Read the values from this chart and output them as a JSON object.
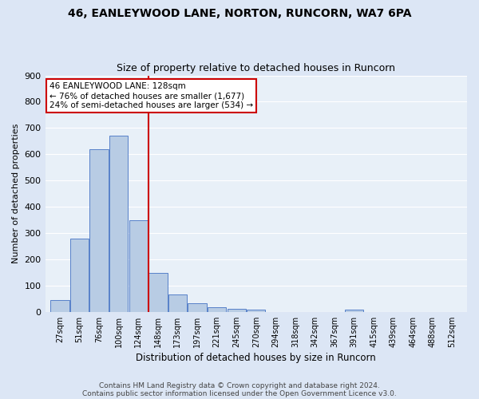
{
  "title1": "46, EANLEYWOOD LANE, NORTON, RUNCORN, WA7 6PA",
  "title2": "Size of property relative to detached houses in Runcorn",
  "xlabel": "Distribution of detached houses by size in Runcorn",
  "ylabel": "Number of detached properties",
  "bin_labels": [
    "27sqm",
    "51sqm",
    "76sqm",
    "100sqm",
    "124sqm",
    "148sqm",
    "173sqm",
    "197sqm",
    "221sqm",
    "245sqm",
    "270sqm",
    "294sqm",
    "318sqm",
    "342sqm",
    "367sqm",
    "391sqm",
    "415sqm",
    "439sqm",
    "464sqm",
    "488sqm",
    "512sqm"
  ],
  "bar_values": [
    45,
    280,
    620,
    670,
    348,
    148,
    65,
    32,
    17,
    12,
    10,
    0,
    0,
    0,
    0,
    8,
    0,
    0,
    0,
    0,
    0
  ],
  "bar_color": "#b8cce4",
  "bar_edge_color": "#4472c4",
  "vline_color": "#cc0000",
  "annotation_title": "46 EANLEYWOOD LANE: 128sqm",
  "annotation_line1": "← 76% of detached houses are smaller (1,677)",
  "annotation_line2": "24% of semi-detached houses are larger (534) →",
  "annotation_box_color": "#ffffff",
  "annotation_box_edge": "#cc0000",
  "ylim": [
    0,
    900
  ],
  "yticks": [
    0,
    100,
    200,
    300,
    400,
    500,
    600,
    700,
    800,
    900
  ],
  "footer1": "Contains HM Land Registry data © Crown copyright and database right 2024.",
  "footer2": "Contains public sector information licensed under the Open Government Licence v3.0.",
  "bg_color": "#dce6f5",
  "plot_bg_color": "#e8f0f8"
}
